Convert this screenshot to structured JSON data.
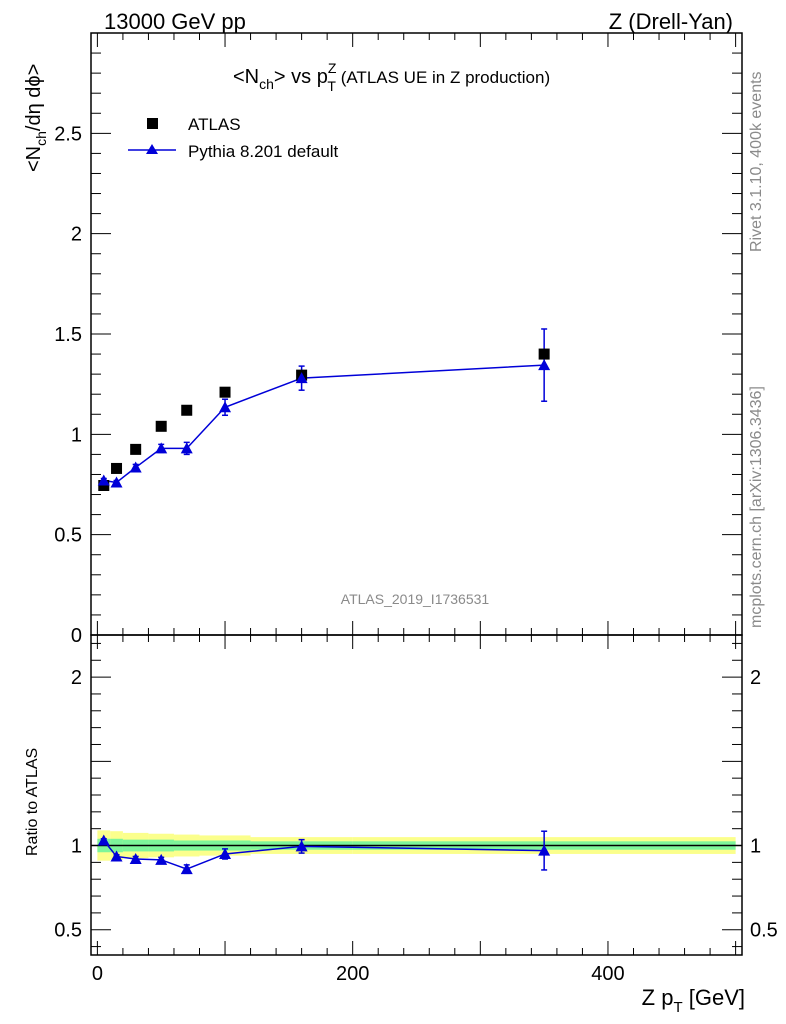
{
  "header": {
    "left": "13000 GeV pp",
    "right": "Z (Drell-Yan)"
  },
  "side_labels": {
    "rivet": "Rivet 3.1.10,  400k events",
    "mcplots": "mcplots.cern.ch [arXiv:1306.3436]"
  },
  "watermark": "ATLAS_2019_I1736531",
  "colors": {
    "atlas": "#000000",
    "pythia": "#0000d8",
    "band_inner": "#7df59a",
    "band_outer": "#fbff8c"
  },
  "chart_data": [
    {
      "type": "scatter",
      "title_parts": {
        "a": "<N",
        "a_sub": "ch",
        "b": "> vs p",
        "b_sup": "Z",
        "b_sub": "T",
        "c": " (ATLAS UE in Z production)"
      },
      "ylabel_parts": {
        "a": "<N",
        "a_sub": "ch",
        "b": "/dη dϕ>"
      },
      "xlim": [
        -5,
        505
      ],
      "ylim": [
        0,
        3.0
      ],
      "y_ticks": [
        0,
        0.5,
        1,
        1.5,
        2,
        2.5
      ],
      "y_tick_labels": [
        "0",
        "0.5",
        "1",
        "1.5",
        "2",
        "2.5"
      ],
      "legend": {
        "placement": "top-left",
        "entries": [
          "ATLAS",
          "Pythia 8.201 default"
        ]
      },
      "series": [
        {
          "name": "ATLAS",
          "marker": "square",
          "x": [
            5,
            15,
            30,
            50,
            70,
            100,
            160,
            350
          ],
          "y": [
            0.745,
            0.83,
            0.925,
            1.04,
            1.12,
            1.21,
            1.295,
            1.4
          ]
        },
        {
          "name": "Pythia 8.201 default",
          "marker": "triangle",
          "x": [
            5,
            15,
            30,
            50,
            70,
            100,
            160,
            350
          ],
          "y": [
            0.77,
            0.76,
            0.835,
            0.93,
            0.93,
            1.135,
            1.28,
            1.345
          ],
          "yerr": [
            0.01,
            0.01,
            0.015,
            0.02,
            0.03,
            0.04,
            0.06,
            0.18
          ]
        }
      ]
    },
    {
      "type": "line",
      "ylabel": "Ratio to ATLAS",
      "xlabel_parts": {
        "a": "Z p",
        "a_sub": "T",
        "b": " [GeV]"
      },
      "xlim": [
        -5,
        505
      ],
      "ylim": [
        0.35,
        2.25
      ],
      "x_ticks": [
        0,
        200,
        400
      ],
      "x_tick_labels": [
        "0",
        "200",
        "400"
      ],
      "y_ticks": [
        0.5,
        1,
        2
      ],
      "y_tick_labels": [
        "0.5",
        "1",
        "2"
      ],
      "reference_line": 1,
      "band": {
        "x_edges": [
          0,
          10,
          20,
          40,
          60,
          80,
          120,
          200,
          500
        ],
        "inner": [
          0.04,
          0.04,
          0.035,
          0.035,
          0.03,
          0.03,
          0.025,
          0.025
        ],
        "outer": [
          0.09,
          0.085,
          0.075,
          0.07,
          0.065,
          0.06,
          0.05,
          0.05
        ]
      },
      "series": [
        {
          "name": "Pythia 8.201 default",
          "x": [
            5,
            15,
            30,
            50,
            70,
            100,
            160,
            350
          ],
          "y": [
            1.03,
            0.935,
            0.92,
            0.915,
            0.86,
            0.95,
            0.995,
            0.97
          ],
          "yerr": [
            0.01,
            0.01,
            0.015,
            0.015,
            0.025,
            0.03,
            0.04,
            0.115
          ]
        }
      ]
    }
  ]
}
